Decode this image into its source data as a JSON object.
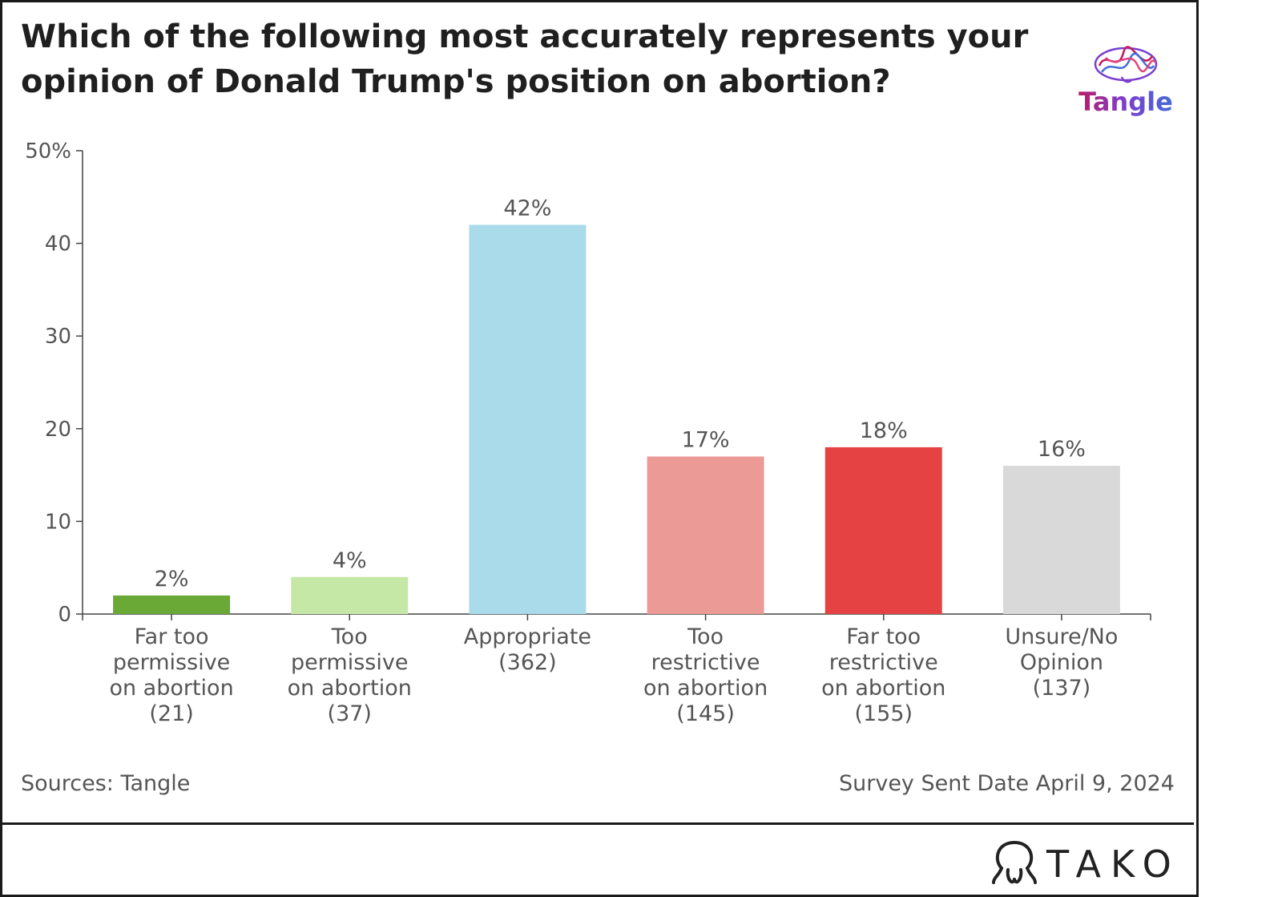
{
  "title": "Which of the following most accurately represents your opinion of Donald Trump's position on abortion?",
  "brand": {
    "logo_text": "Tangle",
    "logo_icon": "brain-scribble-icon",
    "footer_brand": "TAKO",
    "footer_icon": "tako-octopus-icon"
  },
  "footer": {
    "source": "Sources: Tangle",
    "date_note": "Survey Sent Date April 9, 2024"
  },
  "chart_data": {
    "type": "bar",
    "title": "Which of the following most accurately represents your opinion of Donald Trump's position on abortion?",
    "xlabel": "",
    "ylabel": "",
    "ylim": [
      0,
      50
    ],
    "yticks": [
      0,
      10,
      20,
      30,
      40,
      50
    ],
    "ytick_labels": [
      "0",
      "10",
      "20",
      "30",
      "40",
      "50%"
    ],
    "grid": false,
    "categories": [
      [
        "Far too",
        "permissive",
        "on abortion",
        "(21)"
      ],
      [
        "Too",
        "permissive",
        "on abortion",
        "(37)"
      ],
      [
        "Appropriate",
        "(362)"
      ],
      [
        "Too",
        "restrictive",
        "on abortion",
        "(145)"
      ],
      [
        "Far too",
        "restrictive",
        "on abortion",
        "(155)"
      ],
      [
        "Unsure/No",
        "Opinion",
        "(137)"
      ]
    ],
    "values": [
      2,
      4,
      42,
      17,
      18,
      16
    ],
    "value_labels": [
      "2%",
      "4%",
      "42%",
      "17%",
      "18%",
      "16%"
    ],
    "colors": [
      "#6aa936",
      "#c5e8a6",
      "#a9dbea",
      "#eb9a95",
      "#e54343",
      "#d9d9d9"
    ]
  }
}
